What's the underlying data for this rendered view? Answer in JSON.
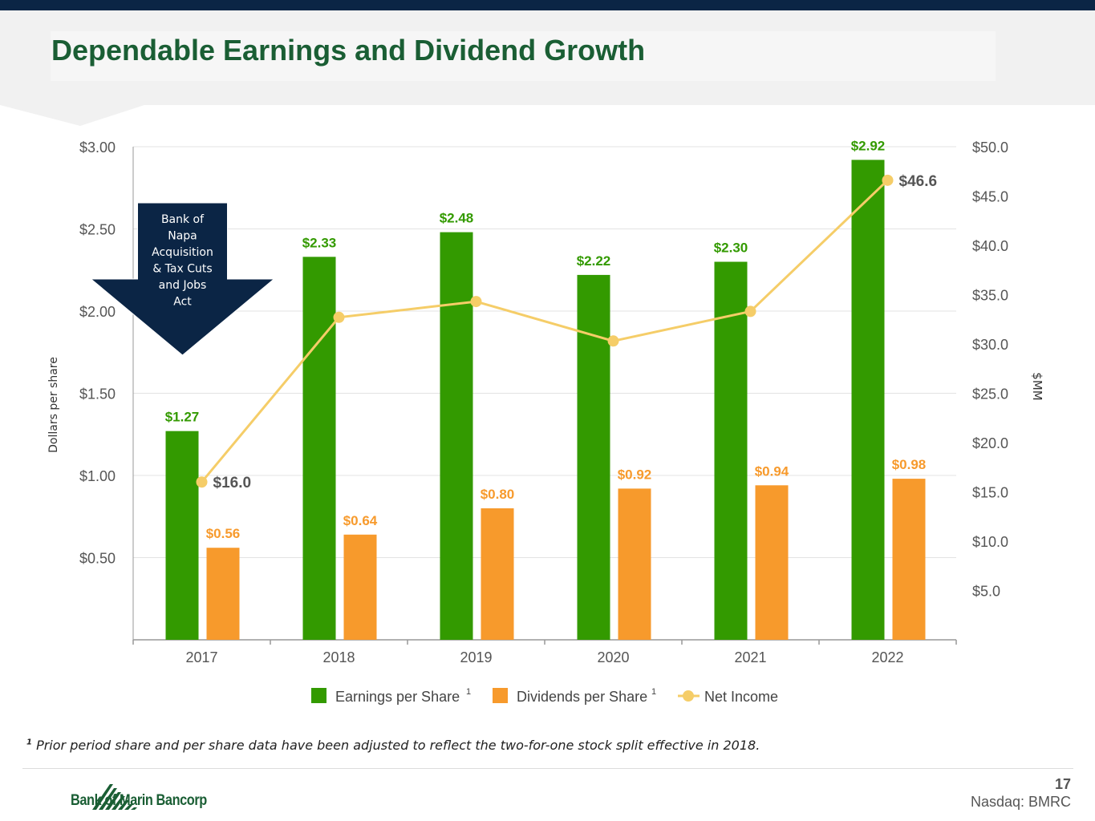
{
  "slide": {
    "title": "Dependable Earnings and Dividend Growth",
    "footnote_marker": "1",
    "footnote": "Prior period share and per share data have been adjusted to reflect the two-for-one stock split effective in 2018.",
    "company": "Bank of Marin Bancorp",
    "page_number": "17",
    "ticker": "Nasdaq: BMRC"
  },
  "colors": {
    "eps": "#339a00",
    "dps": "#f79a2c",
    "net_income": "#f5cd68",
    "title": "#1a5e34",
    "callout": "#0b2545"
  },
  "chart_data": {
    "type": "bar",
    "categories": [
      "2017",
      "2018",
      "2019",
      "2020",
      "2021",
      "2022"
    ],
    "series": [
      {
        "name": "Earnings per Share",
        "name_sup": "1",
        "type": "bar",
        "axis": "left",
        "values": [
          1.27,
          2.33,
          2.48,
          2.22,
          2.3,
          2.92
        ],
        "labels": [
          "$1.27",
          "$2.33",
          "$2.48",
          "$2.22",
          "$2.30",
          "$2.92"
        ]
      },
      {
        "name": "Dividends per Share",
        "name_sup": "1",
        "type": "bar",
        "axis": "left",
        "values": [
          0.56,
          0.64,
          0.8,
          0.92,
          0.94,
          0.98
        ],
        "labels": [
          "$0.56",
          "$0.64",
          "$0.80",
          "$0.92",
          "$0.94",
          "$0.98"
        ]
      },
      {
        "name": "Net Income",
        "type": "line",
        "axis": "right",
        "values": [
          16.0,
          32.7,
          34.3,
          30.3,
          33.3,
          46.6
        ],
        "labels": [
          "$16.0",
          null,
          null,
          null,
          null,
          "$46.6"
        ]
      }
    ],
    "ylabel": "Dollars per share",
    "y2label": "$MM",
    "ylim": [
      0,
      3.0
    ],
    "y2lim": [
      0,
      50.0
    ],
    "yticks": [
      0.5,
      1.0,
      1.5,
      2.0,
      2.5,
      3.0
    ],
    "ytick_labels": [
      "$0.50",
      "$1.00",
      "$1.50",
      "$2.00",
      "$2.50",
      "$3.00"
    ],
    "y2ticks": [
      5,
      10,
      15,
      20,
      25,
      30,
      35,
      40,
      45,
      50
    ],
    "y2tick_labels": [
      "$5.0",
      "$10.0",
      "$15.0",
      "$20.0",
      "$25.0",
      "$30.0",
      "$35.0",
      "$40.0",
      "$45.0",
      "$50.0"
    ],
    "grid": true,
    "legend": "bottom",
    "annotation": {
      "year": "2017",
      "lines": [
        "Bank of",
        "Napa",
        "Acquisition",
        "& Tax Cuts",
        "and Jobs",
        "Act"
      ]
    }
  }
}
